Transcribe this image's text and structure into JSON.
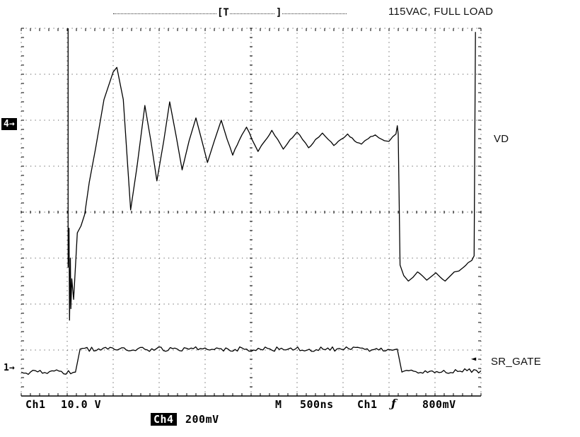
{
  "annotations": {
    "condition": "115VAC, FULL LOAD",
    "trace_top_label": "VD",
    "trace_bottom_label": "SR_GATE"
  },
  "preview": {
    "trigger_marker": "[T",
    "window_end_marker": "]"
  },
  "markers": {
    "ch4_position": "4→",
    "ch1_position": "1→",
    "trigger_level_icon": "◄"
  },
  "readouts": {
    "ch1_label": "Ch1",
    "ch1_scale": "10.0 V",
    "timebase_label": "M",
    "timebase": "500ns",
    "trigger_source": "Ch1",
    "trigger_slope_symbol": "ƒ",
    "trigger_level": "800mV",
    "ch4_label": "Ch4",
    "ch4_scale": "200mV"
  },
  "chart_data": {
    "type": "line",
    "title": "Oscilloscope capture — 115VAC, FULL LOAD",
    "x_divisions": 10,
    "y_divisions": 8,
    "timebase": "500ns/div",
    "scales": {
      "Ch1": "10.0 V/div",
      "Ch4": "200mV/div"
    },
    "trigger": {
      "source": "Ch1",
      "slope": "rising",
      "level": "800mV"
    },
    "coordinate_note": "points_div are [x,y] in graticule divisions; x 0-10 left to right, y 0-8 top to bottom",
    "series": [
      {
        "name": "VD",
        "noise": 0.018,
        "points_div": [
          [
            1.02,
            0.0
          ],
          [
            1.02,
            5.2
          ],
          [
            1.04,
            4.35
          ],
          [
            1.05,
            6.35
          ],
          [
            1.07,
            5.0
          ],
          [
            1.08,
            6.1
          ],
          [
            1.1,
            5.45
          ],
          [
            1.14,
            5.9
          ],
          [
            1.22,
            4.45
          ],
          [
            1.3,
            4.3
          ],
          [
            1.38,
            4.05
          ],
          [
            1.48,
            3.35
          ],
          [
            1.62,
            2.6
          ],
          [
            1.8,
            1.55
          ],
          [
            2.0,
            0.95
          ],
          [
            2.08,
            0.85
          ],
          [
            2.22,
            1.55
          ],
          [
            2.38,
            3.95
          ],
          [
            2.52,
            3.0
          ],
          [
            2.69,
            1.68
          ],
          [
            2.82,
            2.45
          ],
          [
            2.95,
            3.32
          ],
          [
            3.1,
            2.45
          ],
          [
            3.23,
            1.6
          ],
          [
            3.37,
            2.35
          ],
          [
            3.5,
            3.08
          ],
          [
            3.65,
            2.45
          ],
          [
            3.8,
            1.95
          ],
          [
            3.93,
            2.45
          ],
          [
            4.05,
            2.92
          ],
          [
            4.2,
            2.45
          ],
          [
            4.35,
            2.0
          ],
          [
            4.48,
            2.42
          ],
          [
            4.6,
            2.76
          ],
          [
            4.75,
            2.42
          ],
          [
            4.9,
            2.15
          ],
          [
            5.02,
            2.42
          ],
          [
            5.15,
            2.68
          ],
          [
            5.3,
            2.45
          ],
          [
            5.45,
            2.22
          ],
          [
            5.58,
            2.42
          ],
          [
            5.7,
            2.63
          ],
          [
            5.85,
            2.42
          ],
          [
            6.0,
            2.26
          ],
          [
            6.12,
            2.42
          ],
          [
            6.25,
            2.6
          ],
          [
            6.4,
            2.42
          ],
          [
            6.55,
            2.28
          ],
          [
            6.68,
            2.42
          ],
          [
            6.8,
            2.55
          ],
          [
            6.95,
            2.42
          ],
          [
            7.1,
            2.3
          ],
          [
            7.25,
            2.45
          ],
          [
            7.4,
            2.52
          ],
          [
            7.55,
            2.4
          ],
          [
            7.7,
            2.32
          ],
          [
            7.85,
            2.42
          ],
          [
            8.0,
            2.46
          ],
          [
            8.08,
            2.36
          ],
          [
            8.15,
            2.3
          ],
          [
            8.18,
            2.12
          ],
          [
            8.2,
            2.3
          ],
          [
            8.24,
            5.15
          ],
          [
            8.32,
            5.38
          ],
          [
            8.42,
            5.5
          ],
          [
            8.52,
            5.42
          ],
          [
            8.62,
            5.3
          ],
          [
            8.72,
            5.38
          ],
          [
            8.82,
            5.48
          ],
          [
            8.92,
            5.4
          ],
          [
            9.02,
            5.32
          ],
          [
            9.12,
            5.42
          ],
          [
            9.22,
            5.5
          ],
          [
            9.32,
            5.4
          ],
          [
            9.42,
            5.3
          ],
          [
            9.52,
            5.28
          ],
          [
            9.62,
            5.2
          ],
          [
            9.72,
            5.1
          ],
          [
            9.8,
            5.05
          ],
          [
            9.85,
            4.95
          ],
          [
            9.88,
            0.08
          ]
        ]
      },
      {
        "name": "SR_GATE",
        "noise": 0.05,
        "points_div": [
          [
            0.0,
            7.48
          ],
          [
            1.18,
            7.48
          ],
          [
            1.28,
            6.98
          ],
          [
            4.5,
            6.98
          ],
          [
            8.18,
            6.98
          ],
          [
            8.28,
            7.48
          ],
          [
            10.0,
            7.45
          ]
        ]
      }
    ]
  }
}
